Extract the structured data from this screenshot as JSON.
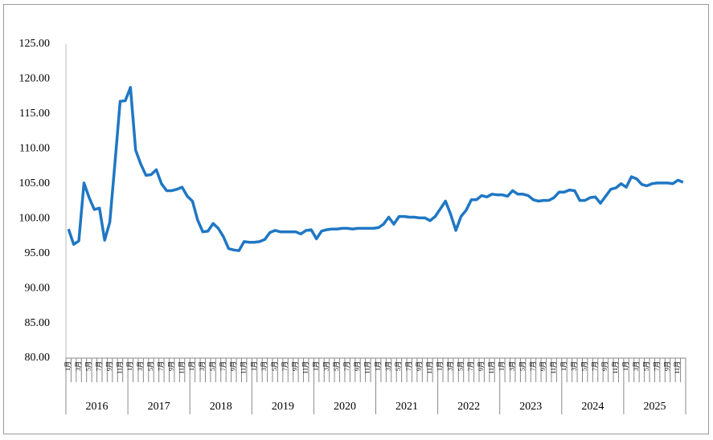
{
  "chart_data": {
    "type": "line",
    "categories": [
      "1月",
      null,
      "3月",
      null,
      "5月",
      null,
      "7月",
      null,
      "9月",
      null,
      "11月",
      null,
      "1月",
      null,
      "3月",
      null,
      "5月",
      null,
      "7月",
      null,
      "9月",
      null,
      "11月",
      null,
      "1月",
      null,
      "3月",
      null,
      "5月",
      null,
      "7月",
      null,
      "9月",
      null,
      "11月",
      null,
      "1月",
      null,
      "3月",
      null,
      "5月",
      null,
      "7月",
      null,
      "9月",
      null,
      "11月",
      null,
      "1月",
      null,
      "3月",
      null,
      "5月",
      null,
      "7月",
      null,
      "9月",
      null,
      "11月",
      null,
      "1月",
      null,
      "3月",
      null,
      "5月",
      null,
      "7月",
      null,
      "9月",
      null,
      "11月",
      null,
      "1月",
      null,
      "3月",
      null,
      "5月",
      null,
      "7月",
      null,
      "9月",
      null,
      "11月",
      null,
      "1月",
      null,
      "3月",
      null,
      "5月",
      null,
      "7月",
      null,
      "9月",
      null,
      "11月",
      null,
      "1月",
      null,
      "3月",
      null,
      "5月",
      null,
      "7月",
      null,
      "9月",
      null,
      "11月",
      null,
      "1月",
      null,
      "3月",
      null,
      "5月",
      null,
      "7月",
      null,
      "9月",
      null,
      "11月",
      null
    ],
    "year_groups": [
      "2016",
      "2017",
      "2018",
      "2019",
      "2020",
      "2021",
      "2022",
      "2023",
      "2024",
      "2025"
    ],
    "values": [
      98.5,
      96.3,
      96.8,
      105.1,
      103,
      101.3,
      101.5,
      96.9,
      99.5,
      108,
      116.8,
      116.9,
      118.8,
      109.8,
      107.8,
      106.2,
      106.3,
      107,
      105,
      104,
      104,
      104.2,
      104.5,
      103.2,
      102.5,
      99.8,
      98.1,
      98.2,
      99.3,
      98.6,
      97.4,
      95.7,
      95.5,
      95.4,
      96.7,
      96.6,
      96.6,
      96.7,
      97,
      98,
      98.3,
      98.1,
      98.1,
      98.1,
      98.1,
      97.8,
      98.3,
      98.4,
      97.1,
      98.2,
      98.4,
      98.5,
      98.5,
      98.6,
      98.6,
      98.5,
      98.6,
      98.6,
      98.6,
      98.6,
      98.7,
      99.2,
      100.2,
      99.2,
      100.3,
      100.3,
      100.2,
      100.2,
      100.1,
      100.1,
      99.7,
      100.3,
      101.4,
      102.5,
      100.6,
      98.3,
      100.3,
      101.2,
      102.7,
      102.7,
      103.3,
      103.1,
      103.5,
      103.4,
      103.4,
      103.2,
      104,
      103.5,
      103.5,
      103.3,
      102.7,
      102.5,
      102.6,
      102.6,
      103,
      103.8,
      103.8,
      104.1,
      104,
      102.6,
      102.6,
      103,
      103.1,
      102.2,
      103.2,
      104.2,
      104.4,
      105,
      104.5,
      106,
      105.7,
      104.9,
      104.7,
      105,
      105.1,
      105.1,
      105.1,
      105,
      105.5,
      105.2
    ],
    "color": "#1f77c4",
    "ylim": [
      80,
      125
    ],
    "yticks": [
      {
        "value": 80,
        "label": "80.00"
      },
      {
        "value": 85,
        "label": "85.00"
      },
      {
        "value": 90,
        "label": "90.00"
      },
      {
        "value": 95,
        "label": "95.00"
      },
      {
        "value": 100,
        "label": "100.00"
      },
      {
        "value": 105,
        "label": "105.00"
      },
      {
        "value": 110,
        "label": "110.00"
      },
      {
        "value": 115,
        "label": "115.00"
      },
      {
        "value": 120,
        "label": "120.00"
      },
      {
        "value": 125,
        "label": "125.00"
      }
    ],
    "grid": false
  }
}
